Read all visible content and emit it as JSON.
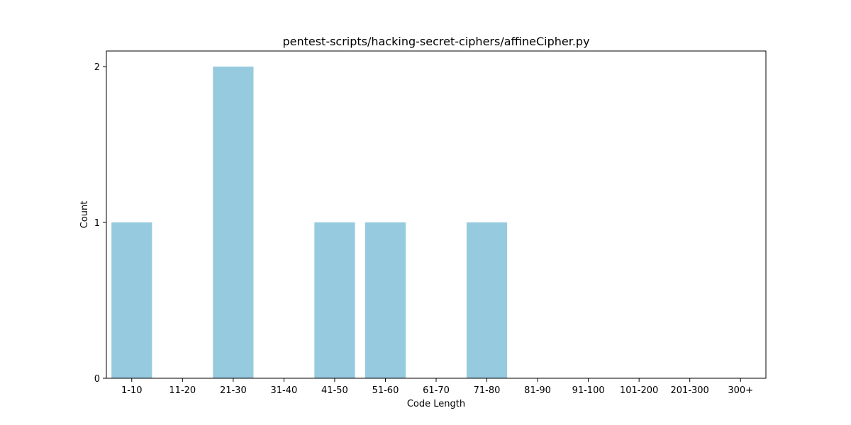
{
  "chart_data": {
    "type": "bar",
    "title": "pentest-scripts/hacking-secret-ciphers/affineCipher.py",
    "xlabel": "Code Length",
    "ylabel": "Count",
    "categories": [
      "1-10",
      "11-20",
      "21-30",
      "31-40",
      "41-50",
      "51-60",
      "61-70",
      "71-80",
      "81-90",
      "91-100",
      "101-200",
      "201-300",
      "300+"
    ],
    "values": [
      1,
      0,
      2,
      0,
      1,
      1,
      0,
      1,
      0,
      0,
      0,
      0,
      0
    ],
    "ylim": [
      0,
      2.1
    ],
    "yticks": [
      0,
      1,
      2
    ],
    "bar_color": "#96cadf",
    "grid": false,
    "legend": "none"
  }
}
